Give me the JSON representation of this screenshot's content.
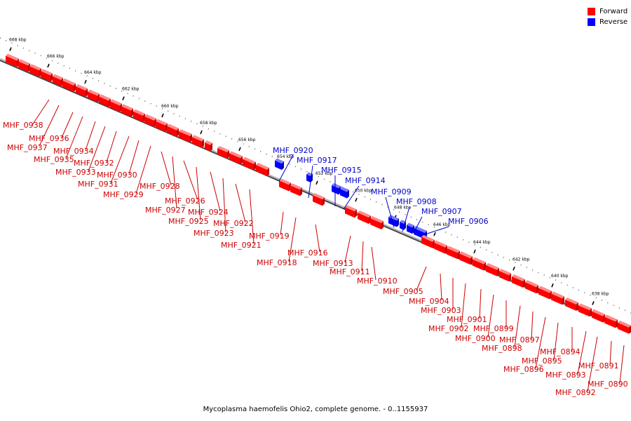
{
  "legend": [
    {
      "label": "Forward",
      "color": "#ff0000"
    },
    {
      "label": "Reverse",
      "color": "#0000ff"
    }
  ],
  "caption": "Mycoplasma haemofelis Ohio2, complete genome. - 0..1155937",
  "axis_ticks": [
    "668 kbp",
    "666 kbp",
    "664 kbp",
    "662 kbp",
    "660 kbp",
    "658 kbp",
    "656 kbp",
    "654 kbp",
    "652 kbp",
    "650 kbp",
    "648 kbp",
    "646 kbp",
    "644 kbp",
    "642 kbp",
    "640 kbp",
    "638 kbp"
  ],
  "genes": [
    {
      "name": "MHF_0938",
      "strand": "forward"
    },
    {
      "name": "MHF_0937",
      "strand": "forward"
    },
    {
      "name": "MHF_0936",
      "strand": "forward"
    },
    {
      "name": "MHF_0935",
      "strand": "forward"
    },
    {
      "name": "MHF_0934",
      "strand": "forward"
    },
    {
      "name": "MHF_0933",
      "strand": "forward"
    },
    {
      "name": "MHF_0932",
      "strand": "forward"
    },
    {
      "name": "MHF_0931",
      "strand": "forward"
    },
    {
      "name": "MHF_0930",
      "strand": "forward"
    },
    {
      "name": "MHF_0929",
      "strand": "forward"
    },
    {
      "name": "MHF_0928",
      "strand": "forward"
    },
    {
      "name": "MHF_0927",
      "strand": "forward"
    },
    {
      "name": "MHF_0926",
      "strand": "forward"
    },
    {
      "name": "MHF_0925",
      "strand": "forward"
    },
    {
      "name": "MHF_0924",
      "strand": "forward"
    },
    {
      "name": "MHF_0923",
      "strand": "forward"
    },
    {
      "name": "MHF_0922",
      "strand": "forward"
    },
    {
      "name": "MHF_0921",
      "strand": "forward"
    },
    {
      "name": "MHF_0920",
      "strand": "reverse"
    },
    {
      "name": "MHF_0919",
      "strand": "forward"
    },
    {
      "name": "MHF_0918",
      "strand": "forward"
    },
    {
      "name": "MHF_0917",
      "strand": "reverse"
    },
    {
      "name": "MHF_0916",
      "strand": "forward"
    },
    {
      "name": "MHF_0915",
      "strand": "reverse"
    },
    {
      "name": "MHF_0914",
      "strand": "reverse"
    },
    {
      "name": "MHF_0913",
      "strand": "forward"
    },
    {
      "name": "MHF_0911",
      "strand": "forward"
    },
    {
      "name": "MHF_0910",
      "strand": "forward"
    },
    {
      "name": "MHF_0909",
      "strand": "reverse"
    },
    {
      "name": "MHF_0908",
      "strand": "reverse"
    },
    {
      "name": "MHF_0907",
      "strand": "reverse"
    },
    {
      "name": "MHF_0906",
      "strand": "reverse"
    },
    {
      "name": "MHF_0905",
      "strand": "forward"
    },
    {
      "name": "MHF_0904",
      "strand": "forward"
    },
    {
      "name": "MHF_0903",
      "strand": "forward"
    },
    {
      "name": "MHF_0902",
      "strand": "forward"
    },
    {
      "name": "MHF_0901",
      "strand": "forward"
    },
    {
      "name": "MHF_0900",
      "strand": "forward"
    },
    {
      "name": "MHF_0899",
      "strand": "forward"
    },
    {
      "name": "MHF_0898",
      "strand": "forward"
    },
    {
      "name": "MHF_0897",
      "strand": "forward"
    },
    {
      "name": "MHF_0896",
      "strand": "forward"
    },
    {
      "name": "MHF_0895",
      "strand": "forward"
    },
    {
      "name": "MHF_0894",
      "strand": "forward"
    },
    {
      "name": "MHF_0893",
      "strand": "forward"
    },
    {
      "name": "MHF_0892",
      "strand": "forward"
    },
    {
      "name": "MHF_0891",
      "strand": "forward"
    },
    {
      "name": "MHF_0890",
      "strand": "forward"
    }
  ]
}
